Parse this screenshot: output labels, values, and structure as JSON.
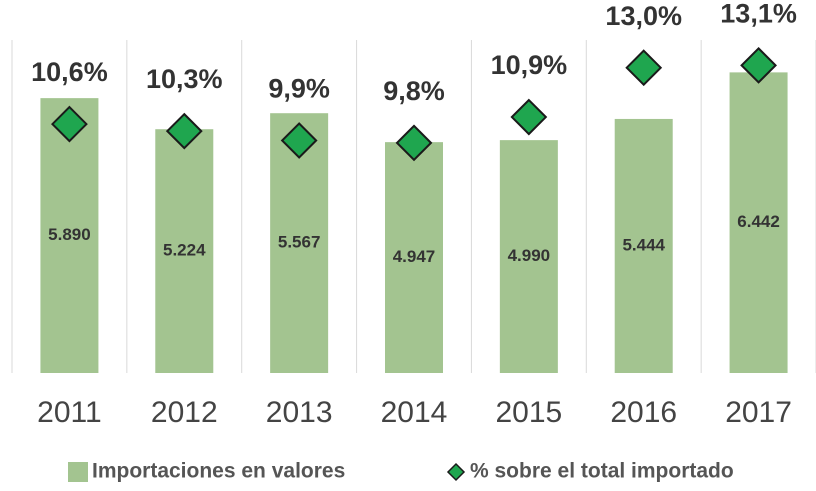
{
  "chart_data": {
    "type": "bar",
    "categories": [
      "2011",
      "2012",
      "2013",
      "2014",
      "2015",
      "2016",
      "2017"
    ],
    "series": [
      {
        "name": "Importaciones en valores",
        "type": "bar",
        "color": "#a3c490",
        "values": [
          5890,
          5224,
          5567,
          4947,
          4990,
          5444,
          6442
        ],
        "value_labels": [
          "5.890",
          "5.224",
          "5.567",
          "4.947",
          "4.990",
          "5.444",
          "6.442"
        ]
      },
      {
        "name": "% sobre el total importado",
        "type": "scatter",
        "axis": "y2",
        "color": "#1fa64f",
        "values": [
          10.6,
          10.3,
          9.9,
          9.8,
          10.9,
          13.0,
          13.1
        ],
        "value_labels": [
          "10,6%",
          "10,3%",
          "9,9%",
          "9,8%",
          "10,9%",
          "13,0%",
          "13,1%"
        ]
      }
    ],
    "ylim": [
      0,
      7800
    ],
    "y2lim": [
      0,
      15.5
    ],
    "legend": "bottom"
  }
}
